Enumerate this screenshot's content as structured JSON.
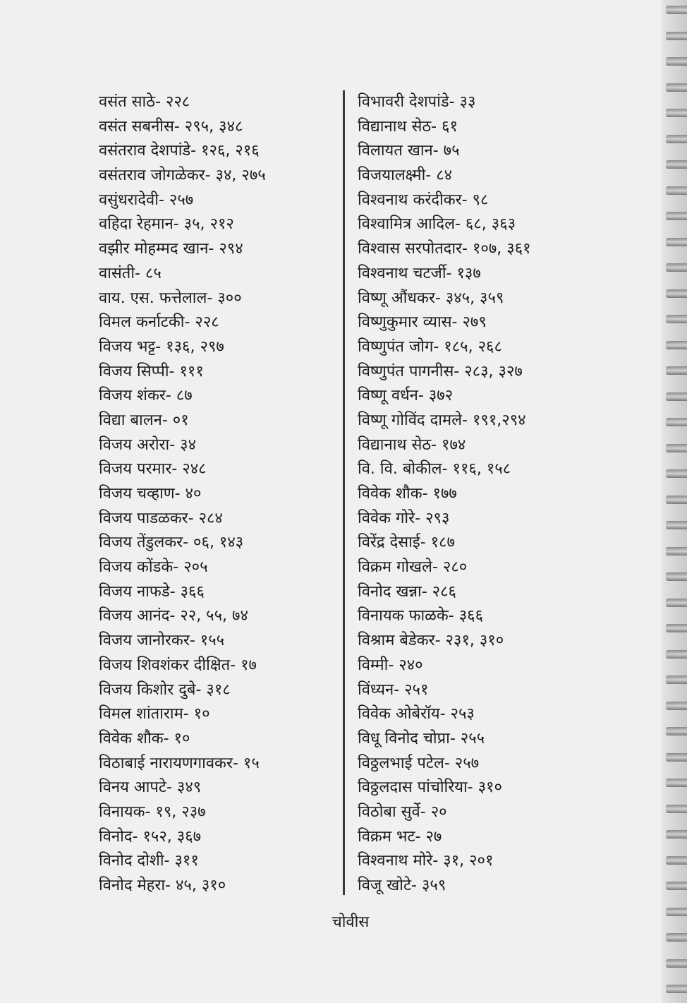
{
  "left_column": [
    "वसंत साठे- २२८",
    "वसंत सबनीस- २९५, ३४८",
    "वसंतराव देशपांडे- १२६, २१६",
    "वसंतराव जोगळेकर- ३४, २७५",
    "वसुंधरादेवी- २५७",
    "वहिदा रेहमान- ३५, २१२",
    "वझीर मोहम्मद खान- २९४",
    "वासंती- ८५",
    "वाय. एस. फत्तेलाल- ३००",
    "विमल कर्नाटकी- २२८",
    "विजय भट्ट- १३६, २९७",
    "विजय सिप्पी- १११",
    "विजय शंकर- ८७",
    "विद्या बालन- ०१",
    "विजय अरोरा- ३४",
    "विजय परमार- २४८",
    "विजय चव्हाण- ४०",
    "विजय पाडळकर- २८४",
    "विजय तेंडुलकर- ०६, १४३",
    "विजय कोंडके- २०५",
    "विजय नाफडे- ३६६",
    "विजय आनंद- २२, ५५, ७४",
    "विजय जानोरकर- १५५",
    "विजय शिवशंकर दीक्षित- १७",
    "विजय किशोर दुबे- ३१८",
    "विमल शांताराम- १०",
    "विवेक शौक- १०",
    "विठाबाई नारायणगावकर- १५",
    "विनय आपटे- ३४९",
    "विनायक- १९, २३७",
    "विनोद- १५२, ३६७",
    "विनोद दोशी- ३११",
    "विनोद मेहरा- ४५, ३१०"
  ],
  "right_column": [
    "विभावरी देशपांडे- ३३",
    "विद्यानाथ सेठ- ६१",
    "विलायत खान- ७५",
    "विजयालक्ष्मी- ८४",
    "विश्वनाथ करंदीकर- ९८",
    "विश्वामित्र आदिल- ६८, ३६३",
    "विश्वास सरपोतदार- १०७, ३६१",
    "विश्वनाथ चटर्जी- १३७",
    "विष्णू औंधकर- ३४५, ३५९",
    "विष्णुकुमार व्यास- २७९",
    "विष्णुपंत जोग- १८५, २६८",
    "विष्णुपंत पागनीस- २८३, ३२७",
    "विष्णू वर्धन- ३७२",
    "विष्णू गोविंद दामले- १९१,२९४",
    "विद्यानाथ सेठ- १७४",
    "वि. वि. बोकील- ११६, १५८",
    "विवेक शौक- १७७",
    "विवेक गोरे- २९३",
    "विरेंद्र देसाई- १८७",
    "विक्रम गोखले- २८०",
    "विनोद खन्ना- २८६",
    "विनायक फाळके- ३६६",
    "विश्राम बेडेकर- २३१, ३१०",
    "विम्मी- २४०",
    "विंध्यन- २५१",
    "विवेक ओबेरॉय- २५३",
    "विधू विनोद चोप्रा- २५५",
    "विठ्ठलभाई पटेल- २५७",
    "विठ्ठलदास पांचोरिया- ३१०",
    "विठोबा सुर्वे- २०",
    "विक्रम भट- २७",
    "विश्वनाथ मोरे- ३१, २०१",
    "विजू खोटे- ३५९"
  ],
  "footer": {
    "page_number": "चोवीस"
  }
}
